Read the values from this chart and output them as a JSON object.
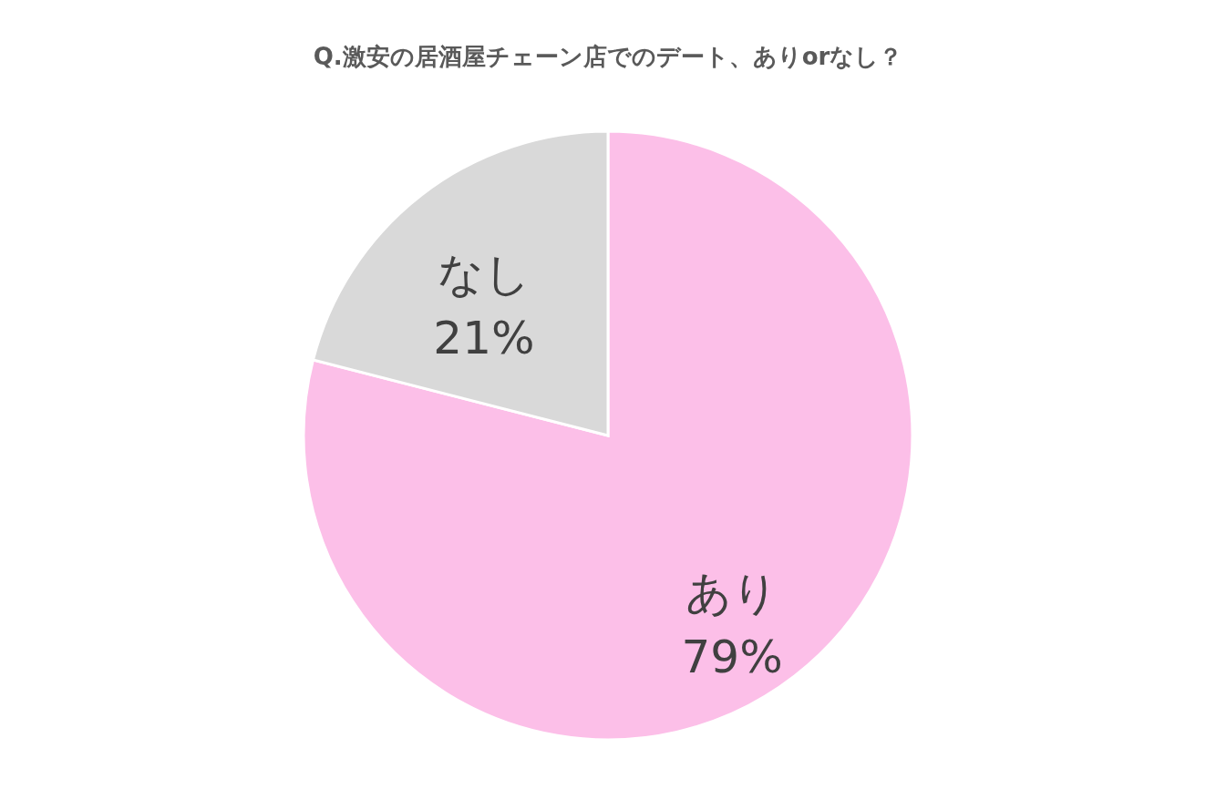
{
  "chart_data": {
    "type": "pie",
    "title": "Q.激安の居酒屋チェーン店でのデート、ありorなし？",
    "categories": [
      "あり",
      "なし"
    ],
    "values": [
      79,
      21
    ],
    "value_labels": [
      "79%",
      "21%"
    ],
    "colors": [
      "#fcbfe8",
      "#d9d9d9"
    ]
  }
}
